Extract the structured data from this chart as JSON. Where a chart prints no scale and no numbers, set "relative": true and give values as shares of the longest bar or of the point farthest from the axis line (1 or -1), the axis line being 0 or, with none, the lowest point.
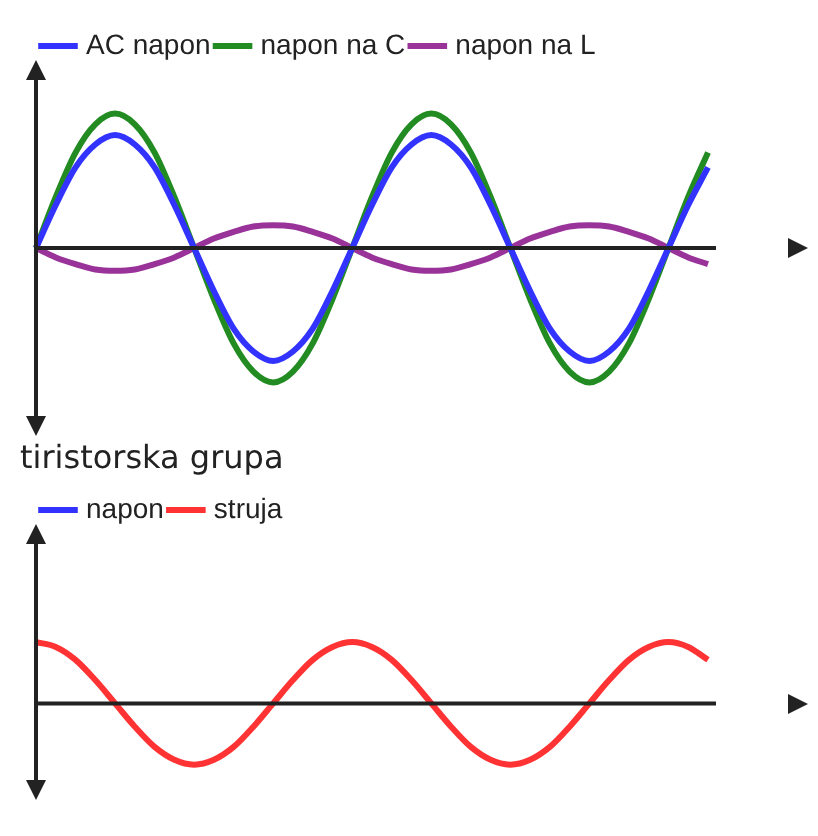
{
  "chart_data": [
    {
      "type": "line",
      "relative": true,
      "legend": "top left",
      "categories": [
        null,
        null,
        null,
        null,
        null,
        null,
        null,
        null,
        null,
        null,
        null,
        null,
        null,
        null,
        null,
        null,
        null,
        null,
        null,
        null,
        null,
        null,
        null,
        null,
        null,
        null,
        null,
        null,
        null,
        null,
        null,
        null,
        null,
        null,
        null
      ],
      "series": [
        {
          "name": "AC napon",
          "color": "#3333ff",
          "values": [
            0,
            0.32,
            0.6,
            0.77,
            0.84,
            0.77,
            0.6,
            0.32,
            0,
            -0.32,
            -0.6,
            -0.77,
            -0.84,
            -0.77,
            -0.6,
            -0.32,
            0,
            0.32,
            0.6,
            0.77,
            0.84,
            0.77,
            0.6,
            0.32,
            0,
            -0.32,
            -0.6,
            -0.77,
            -0.84,
            -0.77,
            -0.6,
            -0.32,
            0,
            0.32,
            0.6
          ]
        },
        {
          "name": "napon na C",
          "color": "#228b22",
          "values": [
            0,
            0.38,
            0.71,
            0.92,
            1,
            0.92,
            0.71,
            0.38,
            0,
            -0.38,
            -0.71,
            -0.92,
            -1,
            -0.92,
            -0.71,
            -0.38,
            0,
            0.38,
            0.71,
            0.92,
            1,
            0.92,
            0.71,
            0.38,
            0,
            -0.38,
            -0.71,
            -0.92,
            -1,
            -0.92,
            -0.71,
            -0.38,
            0,
            0.38,
            0.71
          ]
        },
        {
          "name": "napon na L",
          "color": "#993399",
          "values": [
            0,
            -0.07,
            -0.12,
            -0.16,
            -0.17,
            -0.16,
            -0.12,
            -0.07,
            0,
            0.07,
            0.12,
            0.16,
            0.17,
            0.16,
            0.12,
            0.07,
            0,
            -0.07,
            -0.12,
            -0.16,
            -0.17,
            -0.16,
            -0.12,
            -0.07,
            0,
            0.07,
            0.12,
            0.16,
            0.17,
            0.16,
            0.12,
            0.07,
            0,
            -0.07,
            -0.12
          ]
        }
      ]
    },
    {
      "type": "line",
      "relative": true,
      "legend": "top left",
      "legend_title": "tiristorska grupa",
      "categories": [
        null,
        null,
        null,
        null,
        null,
        null,
        null,
        null,
        null,
        null,
        null,
        null,
        null,
        null,
        null,
        null,
        null,
        null,
        null,
        null,
        null,
        null,
        null,
        null,
        null,
        null,
        null,
        null,
        null,
        null,
        null,
        null,
        null,
        null,
        null
      ],
      "series": [
        {
          "name": "napon",
          "color": "#3333ff",
          "values": [
            null,
            null,
            null,
            null,
            null,
            null,
            null,
            null,
            null,
            null,
            null,
            null,
            null,
            null,
            null,
            null,
            null,
            null,
            null,
            null,
            null,
            null,
            null,
            null,
            null,
            null,
            null,
            null,
            null,
            null,
            null,
            null,
            null,
            null,
            null
          ]
        },
        {
          "name": "struja",
          "color": "#ff3333",
          "values": [
            1,
            0.92,
            0.71,
            0.38,
            0,
            -0.38,
            -0.71,
            -0.92,
            -1,
            -0.92,
            -0.71,
            -0.38,
            0,
            0.38,
            0.71,
            0.92,
            1,
            0.92,
            0.71,
            0.38,
            0,
            -0.38,
            -0.71,
            -0.92,
            -1,
            -0.92,
            -0.71,
            -0.38,
            0,
            0.38,
            0.71,
            0.92,
            1,
            0.92,
            0.71
          ]
        }
      ]
    }
  ]
}
